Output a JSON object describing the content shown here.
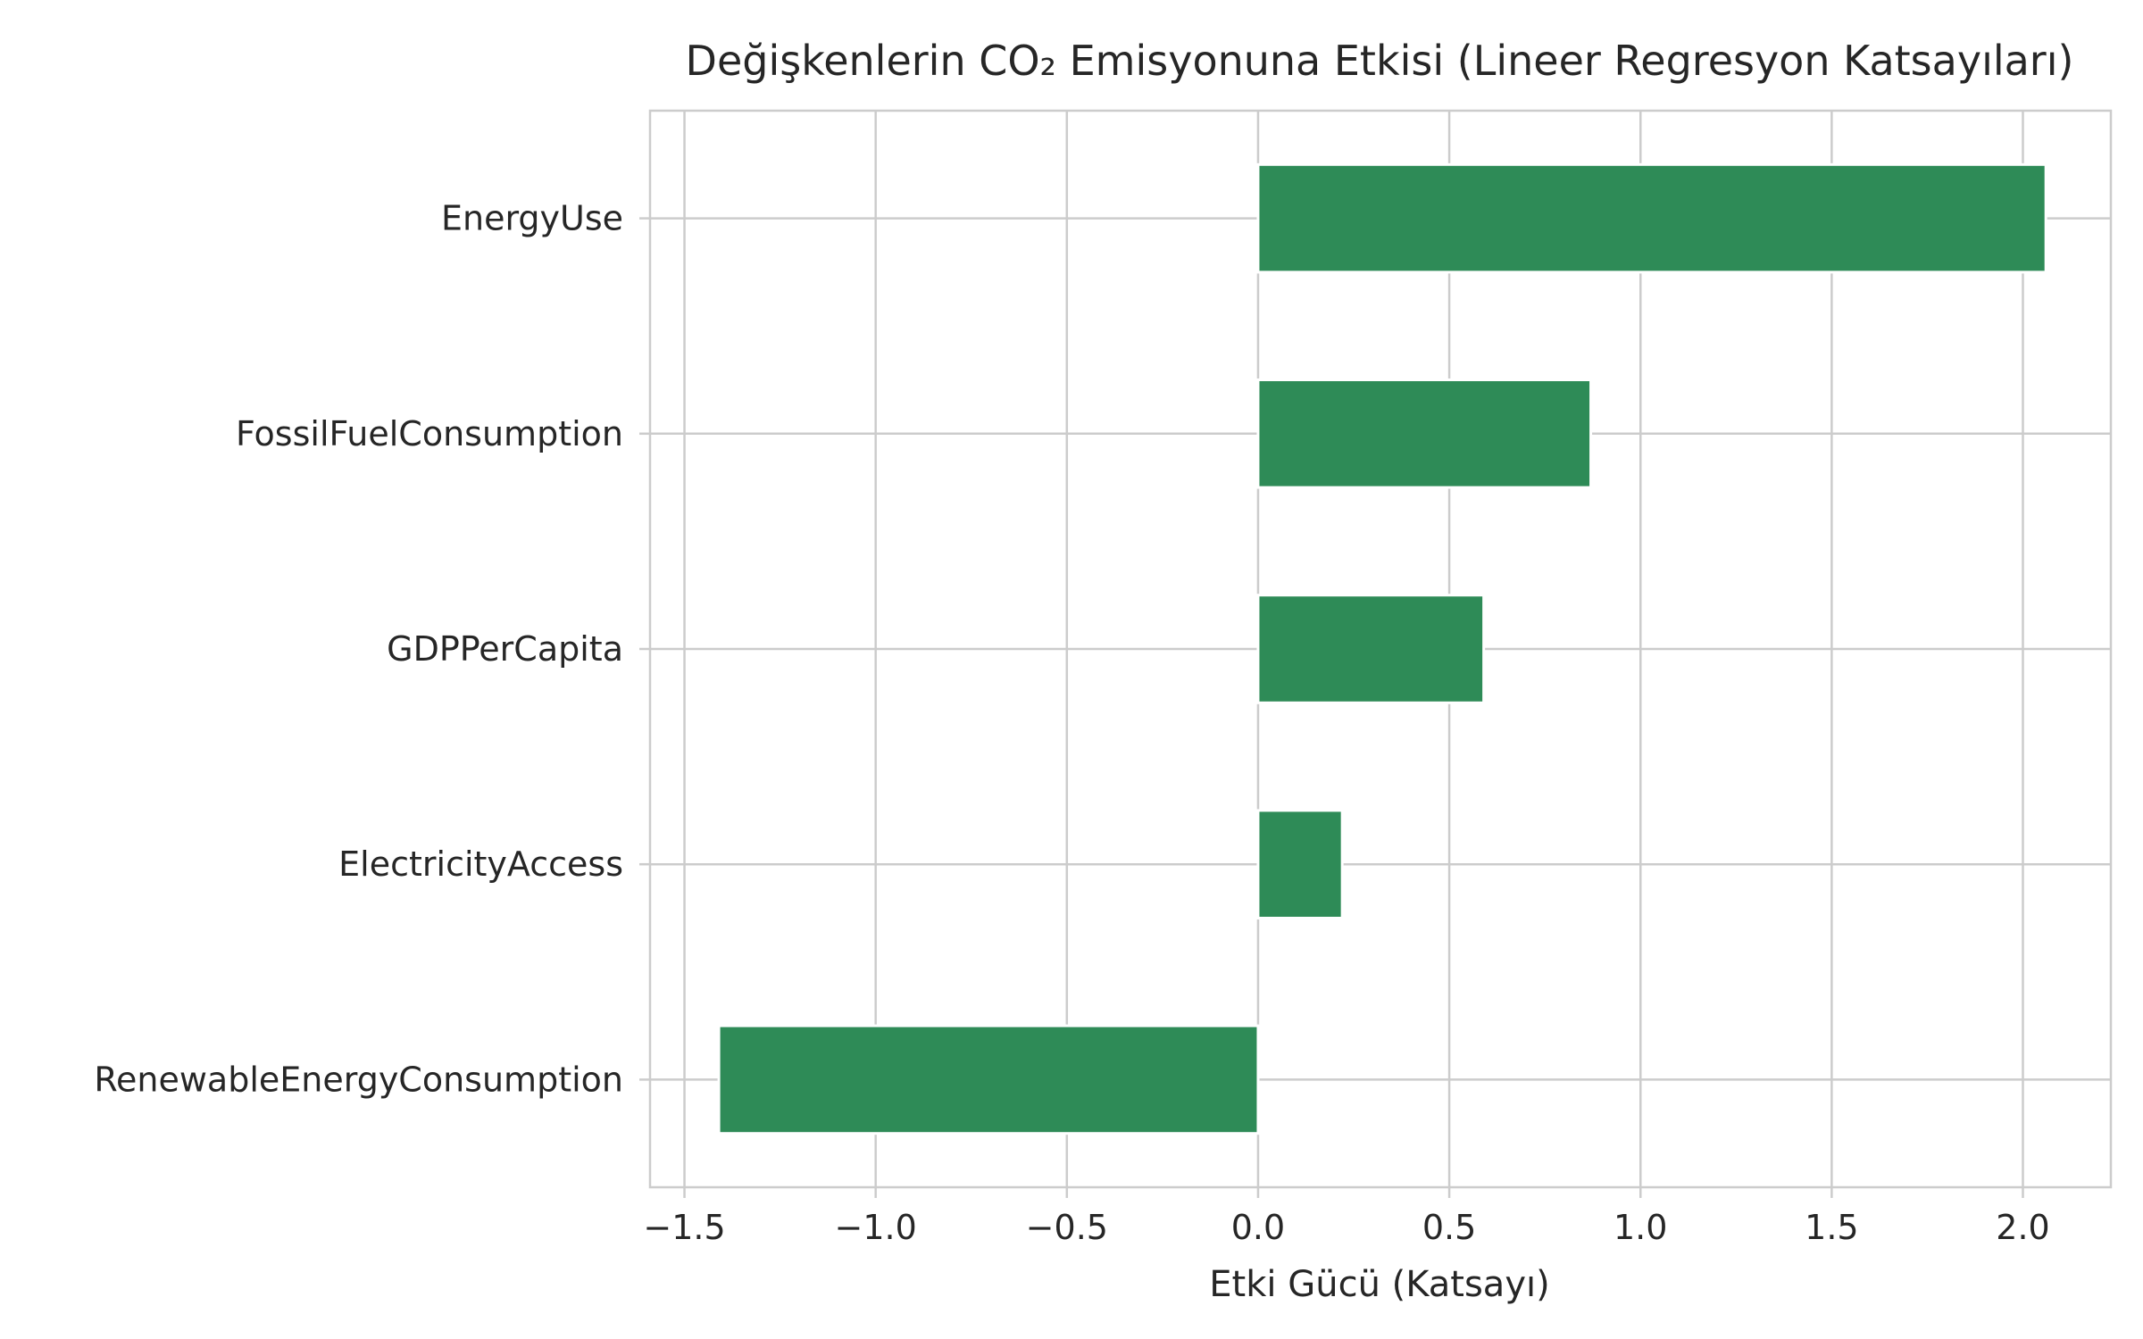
{
  "chart_data": {
    "type": "bar",
    "orientation": "horizontal",
    "title": "Değişkenlerin CO₂ Emisyonuna Etkisi (Lineer Regresyon Katsayıları)",
    "xlabel": "Etki Gücü (Katsayı)",
    "ylabel": "",
    "categories": [
      "EnergyUse",
      "FossilFuelConsumption",
      "GDPPerCapita",
      "ElectricityAccess",
      "RenewableEnergyConsumption"
    ],
    "values": [
      2.06,
      0.87,
      0.59,
      0.22,
      -1.41
    ],
    "xlim": [
      -1.59,
      2.23
    ],
    "xticks": [
      -1.5,
      -1.0,
      -0.5,
      0.0,
      0.5,
      1.0,
      1.5,
      2.0
    ],
    "xtick_labels": [
      "−1.5",
      "−1.0",
      "−0.5",
      "0.0",
      "0.5",
      "1.0",
      "1.5",
      "2.0"
    ],
    "grid": true,
    "bar_color": "#2e8b57",
    "grid_color": "#cccccc",
    "spine_color": "#cccccc",
    "text_color": "#262626"
  }
}
